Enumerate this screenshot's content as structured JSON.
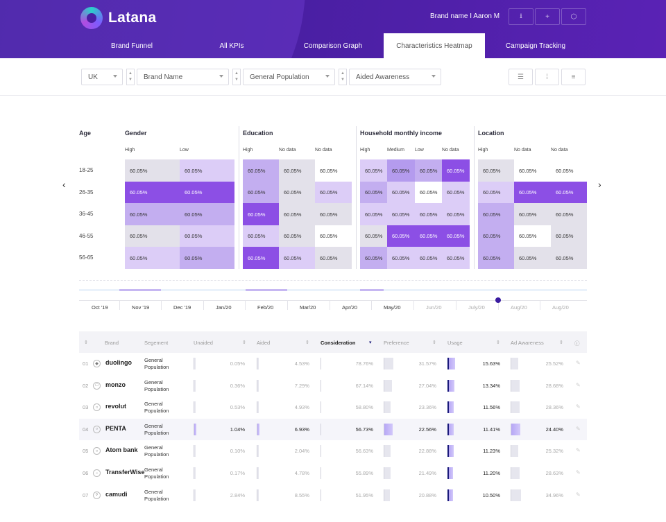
{
  "app": {
    "logo": "Latana",
    "user": "Brand name  I  Aaron M"
  },
  "header_buttons": [
    {
      "icon": "download-icon",
      "glyph": "⭳"
    },
    {
      "icon": "plus-icon",
      "glyph": "+"
    },
    {
      "icon": "settings-icon",
      "glyph": "⬡"
    }
  ],
  "tabs": [
    "Brand Funnel",
    "All KPIs",
    "Comparison Graph",
    "Characteristics Heatmap",
    "Campaign Tracking"
  ],
  "filters": {
    "country": "UK",
    "brand": "Brand Name",
    "population": "General Population",
    "metric": "Aided Awareness"
  },
  "heatmap": {
    "age_label": "Age",
    "groups": [
      {
        "title": "Gender",
        "columns": [
          "High",
          "Low"
        ]
      },
      {
        "title": "Education",
        "columns": [
          "High",
          "No data",
          "No data"
        ]
      },
      {
        "title": "Household monthly income",
        "columns": [
          "High",
          "Medium",
          "Low",
          "No data"
        ]
      },
      {
        "title": "Location",
        "columns": [
          "High",
          "No data",
          "No data"
        ]
      }
    ],
    "rows": [
      "18-25",
      "26-35",
      "36-45",
      "46-55",
      "56-65"
    ],
    "cell_value": "60.05%",
    "intensity": [
      [
        1,
        2,
        3,
        1,
        0,
        2,
        4,
        3,
        5,
        1,
        0,
        0
      ],
      [
        5,
        5,
        3,
        1,
        2,
        3,
        2,
        0,
        2,
        2,
        5,
        5
      ],
      [
        3,
        3,
        5,
        1,
        1,
        2,
        2,
        2,
        2,
        3,
        1,
        1
      ],
      [
        1,
        2,
        2,
        1,
        0,
        1,
        5,
        5,
        5,
        3,
        0,
        1
      ],
      [
        2,
        3,
        5,
        2,
        1,
        3,
        2,
        2,
        2,
        3,
        1,
        1
      ]
    ]
  },
  "timeline": {
    "labels": [
      "Oct '19",
      "Nov '19",
      "Dec '19",
      "Jan/20",
      "Feb/20",
      "Mar/20",
      "Apr/20",
      "May/20",
      "Jun/20",
      "July/20",
      "Aug/20",
      "Aug/20"
    ],
    "muted_from": 8
  },
  "table": {
    "headers": [
      "Brand",
      "Segement",
      "Unaided",
      "Aided",
      "Consideration",
      "Preference",
      "Usage",
      "Ad Awareness"
    ],
    "rows": [
      {
        "n": "01",
        "brand": "duolingo",
        "icon": "owl-icon",
        "glyph": "◆",
        "seg": "General Population",
        "unaided": "0.05%",
        "aided": "4.53%",
        "consideration": "78.76%",
        "preference": "31.57%",
        "usage": "15.63%",
        "ad": "25.52%"
      },
      {
        "n": "02",
        "brand": "monzo",
        "icon": "square-icon",
        "glyph": "□",
        "seg": "General Population",
        "unaided": "0.36%",
        "aided": "7.29%",
        "consideration": "67.14%",
        "preference": "27.04%",
        "usage": "13.34%",
        "ad": "28.68%"
      },
      {
        "n": "03",
        "brand": "revolut",
        "icon": "circle-icon",
        "glyph": "○",
        "seg": "General Population",
        "unaided": "0.53%",
        "aided": "4.93%",
        "consideration": "58.80%",
        "preference": "23.36%",
        "usage": "11.56%",
        "ad": "28.36%"
      },
      {
        "n": "04",
        "brand": "PENTA",
        "icon": "circle-icon",
        "glyph": "○",
        "seg": "General Population",
        "unaided": "1.04%",
        "aided": "6.93%",
        "consideration": "56.73%",
        "preference": "22.56%",
        "usage": "11.41%",
        "ad": "24.40%"
      },
      {
        "n": "05",
        "brand": "Atom bank",
        "icon": "circle-icon",
        "glyph": "○",
        "seg": "General Population",
        "unaided": "0.10%",
        "aided": "2.04%",
        "consideration": "56.63%",
        "preference": "22.88%",
        "usage": "11.23%",
        "ad": "25.32%"
      },
      {
        "n": "06",
        "brand": "TransferWise",
        "icon": "minus-icon",
        "glyph": "−",
        "seg": "General Population",
        "unaided": "0.17%",
        "aided": "4.78%",
        "consideration": "55.89%",
        "preference": "21.49%",
        "usage": "11.20%",
        "ad": "28.63%"
      },
      {
        "n": "07",
        "brand": "camudi",
        "icon": "drop-icon",
        "glyph": "◊",
        "seg": "General Population",
        "unaided": "2.84%",
        "aided": "8.55%",
        "consideration": "51.95%",
        "preference": "20.88%",
        "usage": "10.50%",
        "ad": "34.96%"
      }
    ]
  }
}
